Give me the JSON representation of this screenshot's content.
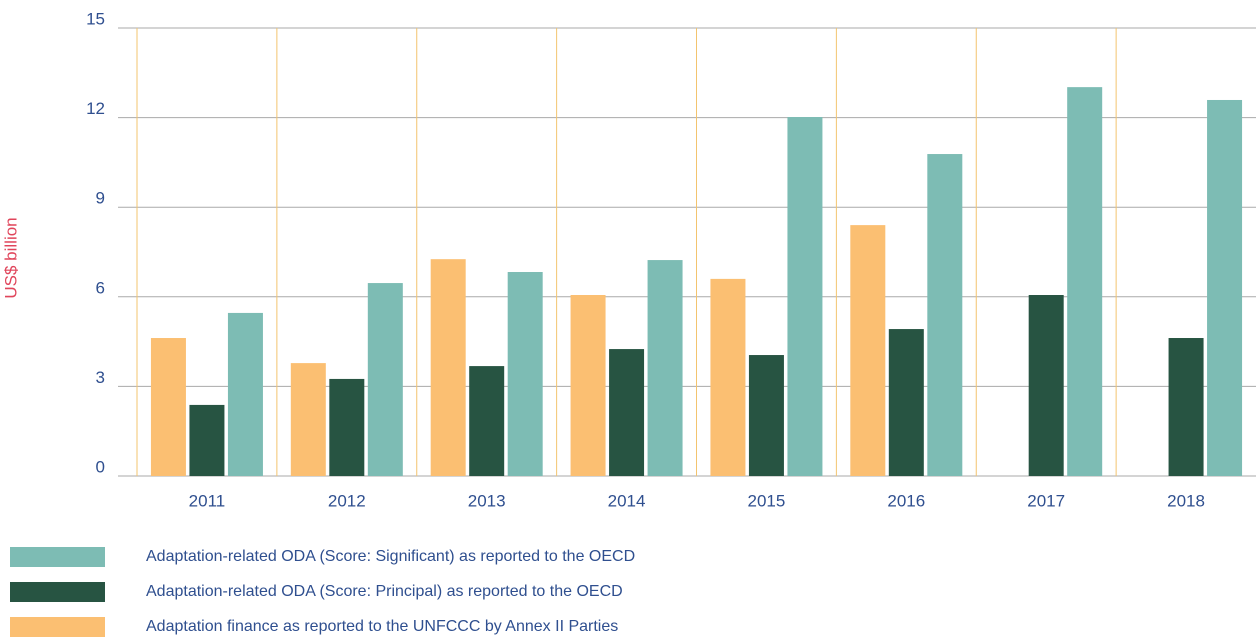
{
  "chart_data": {
    "type": "bar",
    "y_label": "US$ billion",
    "categories": [
      "2011",
      "2012",
      "2013",
      "2014",
      "2015",
      "2016",
      "2017",
      "2018"
    ],
    "series": [
      {
        "name": "Adaptation finance as reported to the UNFCCC by Annex II Parties",
        "color": "#fbbf72",
        "values": [
          4.62,
          3.78,
          7.26,
          6.06,
          6.6,
          8.4,
          null,
          null
        ]
      },
      {
        "name": "Adaptation-related ODA (Score: Principal) as reported to the OECD",
        "color": "#275442",
        "values": [
          2.38,
          3.25,
          3.68,
          4.25,
          4.05,
          4.92,
          6.06,
          4.62
        ]
      },
      {
        "name": "Adaptation-related ODA (Score: Significant) as reported to the OECD",
        "color": "#7dbcb4",
        "values": [
          5.46,
          6.46,
          6.83,
          7.23,
          12.02,
          10.78,
          13.02,
          12.59
        ]
      }
    ],
    "ylim": [
      0,
      15
    ],
    "yticks": [
      0,
      3,
      6,
      9,
      12,
      15
    ],
    "grid": true
  }
}
